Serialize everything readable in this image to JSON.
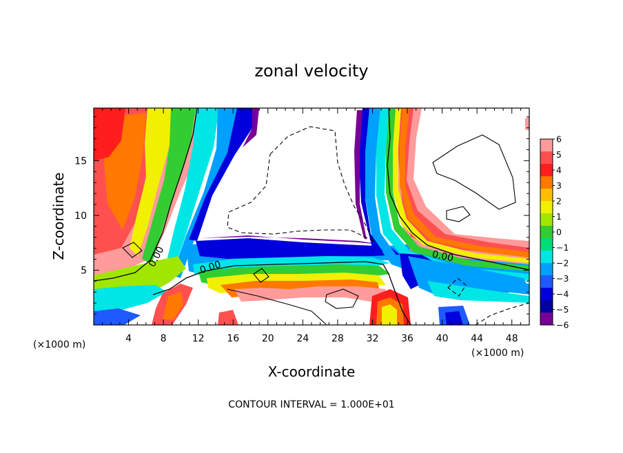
{
  "chart_data": {
    "type": "heatmap",
    "title": "zonal velocity",
    "xlabel": "X-coordinate",
    "ylabel": "Z-coordinate",
    "x_unit": "(×1000 m)",
    "z_unit": "(×1000 m)",
    "xlim": [
      0,
      50
    ],
    "ylim": [
      0,
      19.8
    ],
    "x_ticks": [
      "4",
      "8",
      "12",
      "16",
      "20",
      "24",
      "28",
      "32",
      "36",
      "40",
      "44",
      "48"
    ],
    "y_ticks": [
      "5",
      "10",
      "15"
    ],
    "x_tick_values": [
      4,
      8,
      12,
      16,
      20,
      24,
      28,
      32,
      36,
      40,
      44,
      48
    ],
    "y_tick_values": [
      5,
      10,
      15
    ],
    "colorbar": {
      "labels": [
        "6",
        "5",
        "4",
        "3",
        "2",
        "1",
        "0",
        "−1",
        "−2",
        "−3",
        "−4",
        "−5",
        "−6"
      ],
      "colors": [
        "#ff9b9b",
        "#ff5050",
        "#ff1e1e",
        "#ff7800",
        "#ffbe00",
        "#f0f000",
        "#a0e600",
        "#32cd32",
        "#00dc78",
        "#00e6e6",
        "#00a0ff",
        "#1e5aff",
        "#0000dc",
        "#0000a0",
        "#780096"
      ]
    },
    "contour_labels": [
      {
        "text": "0.00",
        "x": 7.5,
        "z": 6.1
      },
      {
        "text": "0.00",
        "x": 13.5,
        "z": 5.0
      },
      {
        "text": "0.00",
        "x": 40.0,
        "z": 6.0
      }
    ],
    "contour_interval_text": "CONTOUR INTERVAL = 1.000E+01",
    "grid": false,
    "legend_placement": "right"
  }
}
